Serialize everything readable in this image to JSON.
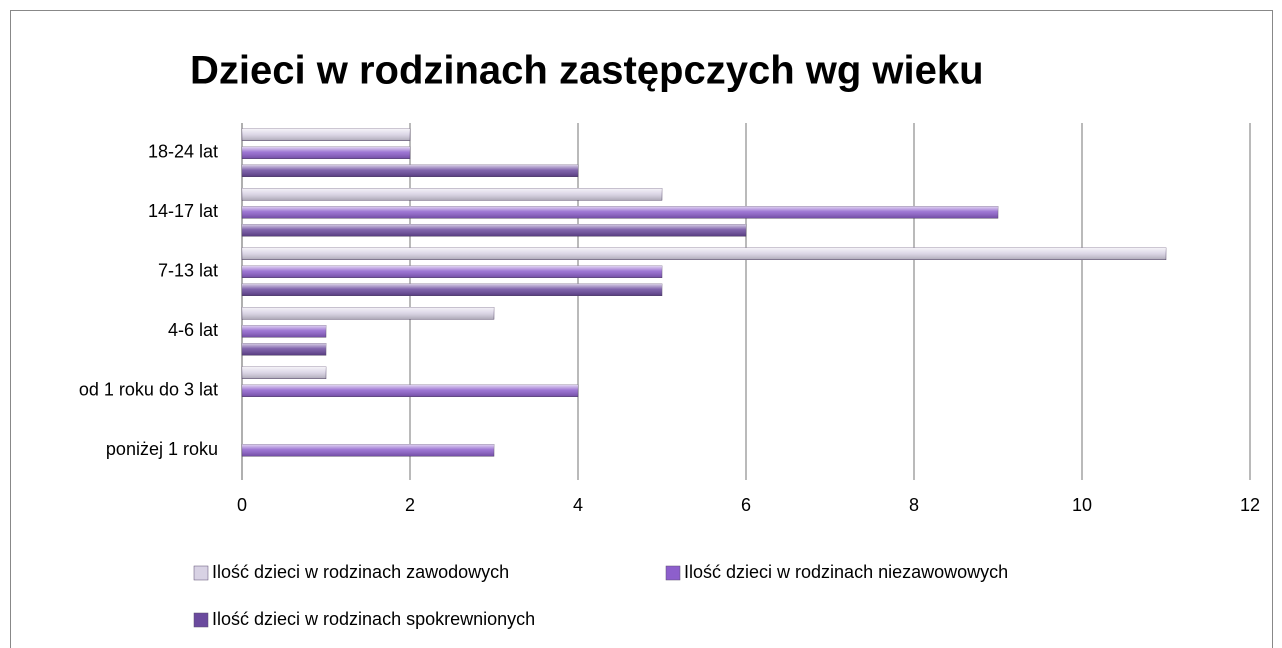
{
  "chart_data": {
    "type": "barh",
    "title": "Dzieci w rodzinach zastępczych wg wieku",
    "categories": [
      "poniżej 1 roku",
      "od 1 roku do 3 lat",
      "4-6 lat",
      "7-13 lat",
      "14-17 lat",
      "18-24 lat"
    ],
    "series": [
      {
        "name": "Ilość dzieci w rodzinach zawodowych",
        "color": "#d8d2e4",
        "values": [
          0,
          1,
          3,
          11,
          5,
          2
        ]
      },
      {
        "name": "Ilość dzieci w rodzinach niezawowowych",
        "color": "#8d5fcc",
        "values": [
          3,
          4,
          1,
          5,
          9,
          2
        ]
      },
      {
        "name": "Ilość dzieci w rodzinach spokrewnionych",
        "color": "#6b4a9e",
        "values": [
          0,
          0,
          1,
          5,
          6,
          4
        ]
      }
    ],
    "xlim": [
      0,
      12
    ],
    "xticks": [
      0,
      2,
      4,
      6,
      8,
      10,
      12
    ],
    "grid": true
  }
}
